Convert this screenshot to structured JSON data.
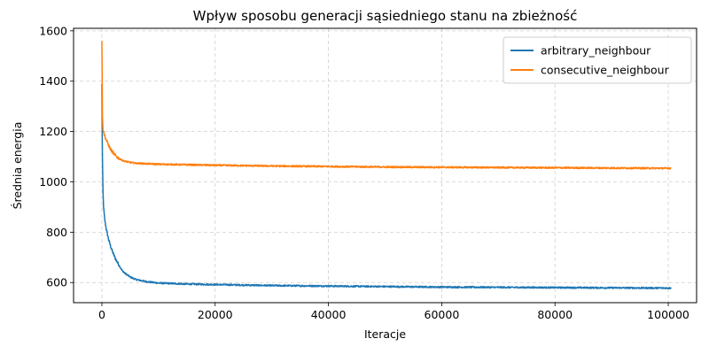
{
  "chart_data": {
    "type": "line",
    "title": "Wpływ sposobu generacji sąsiedniego stanu na zbieżność",
    "xlabel": "Iteracje",
    "ylabel": "Średnia energia",
    "xlim": [
      -5000,
      105000
    ],
    "ylim": [
      520,
      1610
    ],
    "x_ticks": [
      0,
      20000,
      40000,
      60000,
      80000,
      100000
    ],
    "x_tick_labels": [
      "0",
      "20000",
      "40000",
      "60000",
      "80000",
      "100000"
    ],
    "y_ticks": [
      600,
      800,
      1000,
      1200,
      1400,
      1600
    ],
    "y_tick_labels": [
      "600",
      "800",
      "1000",
      "1200",
      "1400",
      "1600"
    ],
    "grid": true,
    "legend_position": "top-right",
    "series": [
      {
        "name": "arbitrary_neighbour",
        "color": "#1f77b4",
        "x": [
          0,
          50,
          100,
          200,
          300,
          500,
          800,
          1200,
          1600,
          2000,
          2500,
          3000,
          3500,
          4000,
          5000,
          6000,
          8000,
          10000,
          15000,
          20000,
          30000,
          40000,
          50000,
          60000,
          70000,
          80000,
          90000,
          100000
        ],
        "values": [
          1390,
          1210,
          1100,
          960,
          900,
          850,
          810,
          770,
          740,
          715,
          690,
          670,
          650,
          638,
          622,
          612,
          603,
          598,
          594,
          592,
          588,
          586,
          584,
          582,
          581,
          580,
          579,
          578
        ]
      },
      {
        "name": "consecutive_neighbour",
        "color": "#ff7f0e",
        "x": [
          0,
          50,
          100,
          200,
          400,
          700,
          1000,
          1500,
          2000,
          2500,
          3000,
          3500,
          4000,
          5000,
          6000,
          8000,
          10000,
          15000,
          20000,
          30000,
          40000,
          50000,
          60000,
          70000,
          80000,
          90000,
          100000
        ],
        "values": [
          1560,
          1420,
          1260,
          1210,
          1190,
          1170,
          1155,
          1130,
          1115,
          1102,
          1093,
          1087,
          1082,
          1077,
          1074,
          1072,
          1070,
          1068,
          1066,
          1063,
          1061,
          1059,
          1058,
          1057,
          1056,
          1055,
          1054
        ]
      }
    ]
  }
}
